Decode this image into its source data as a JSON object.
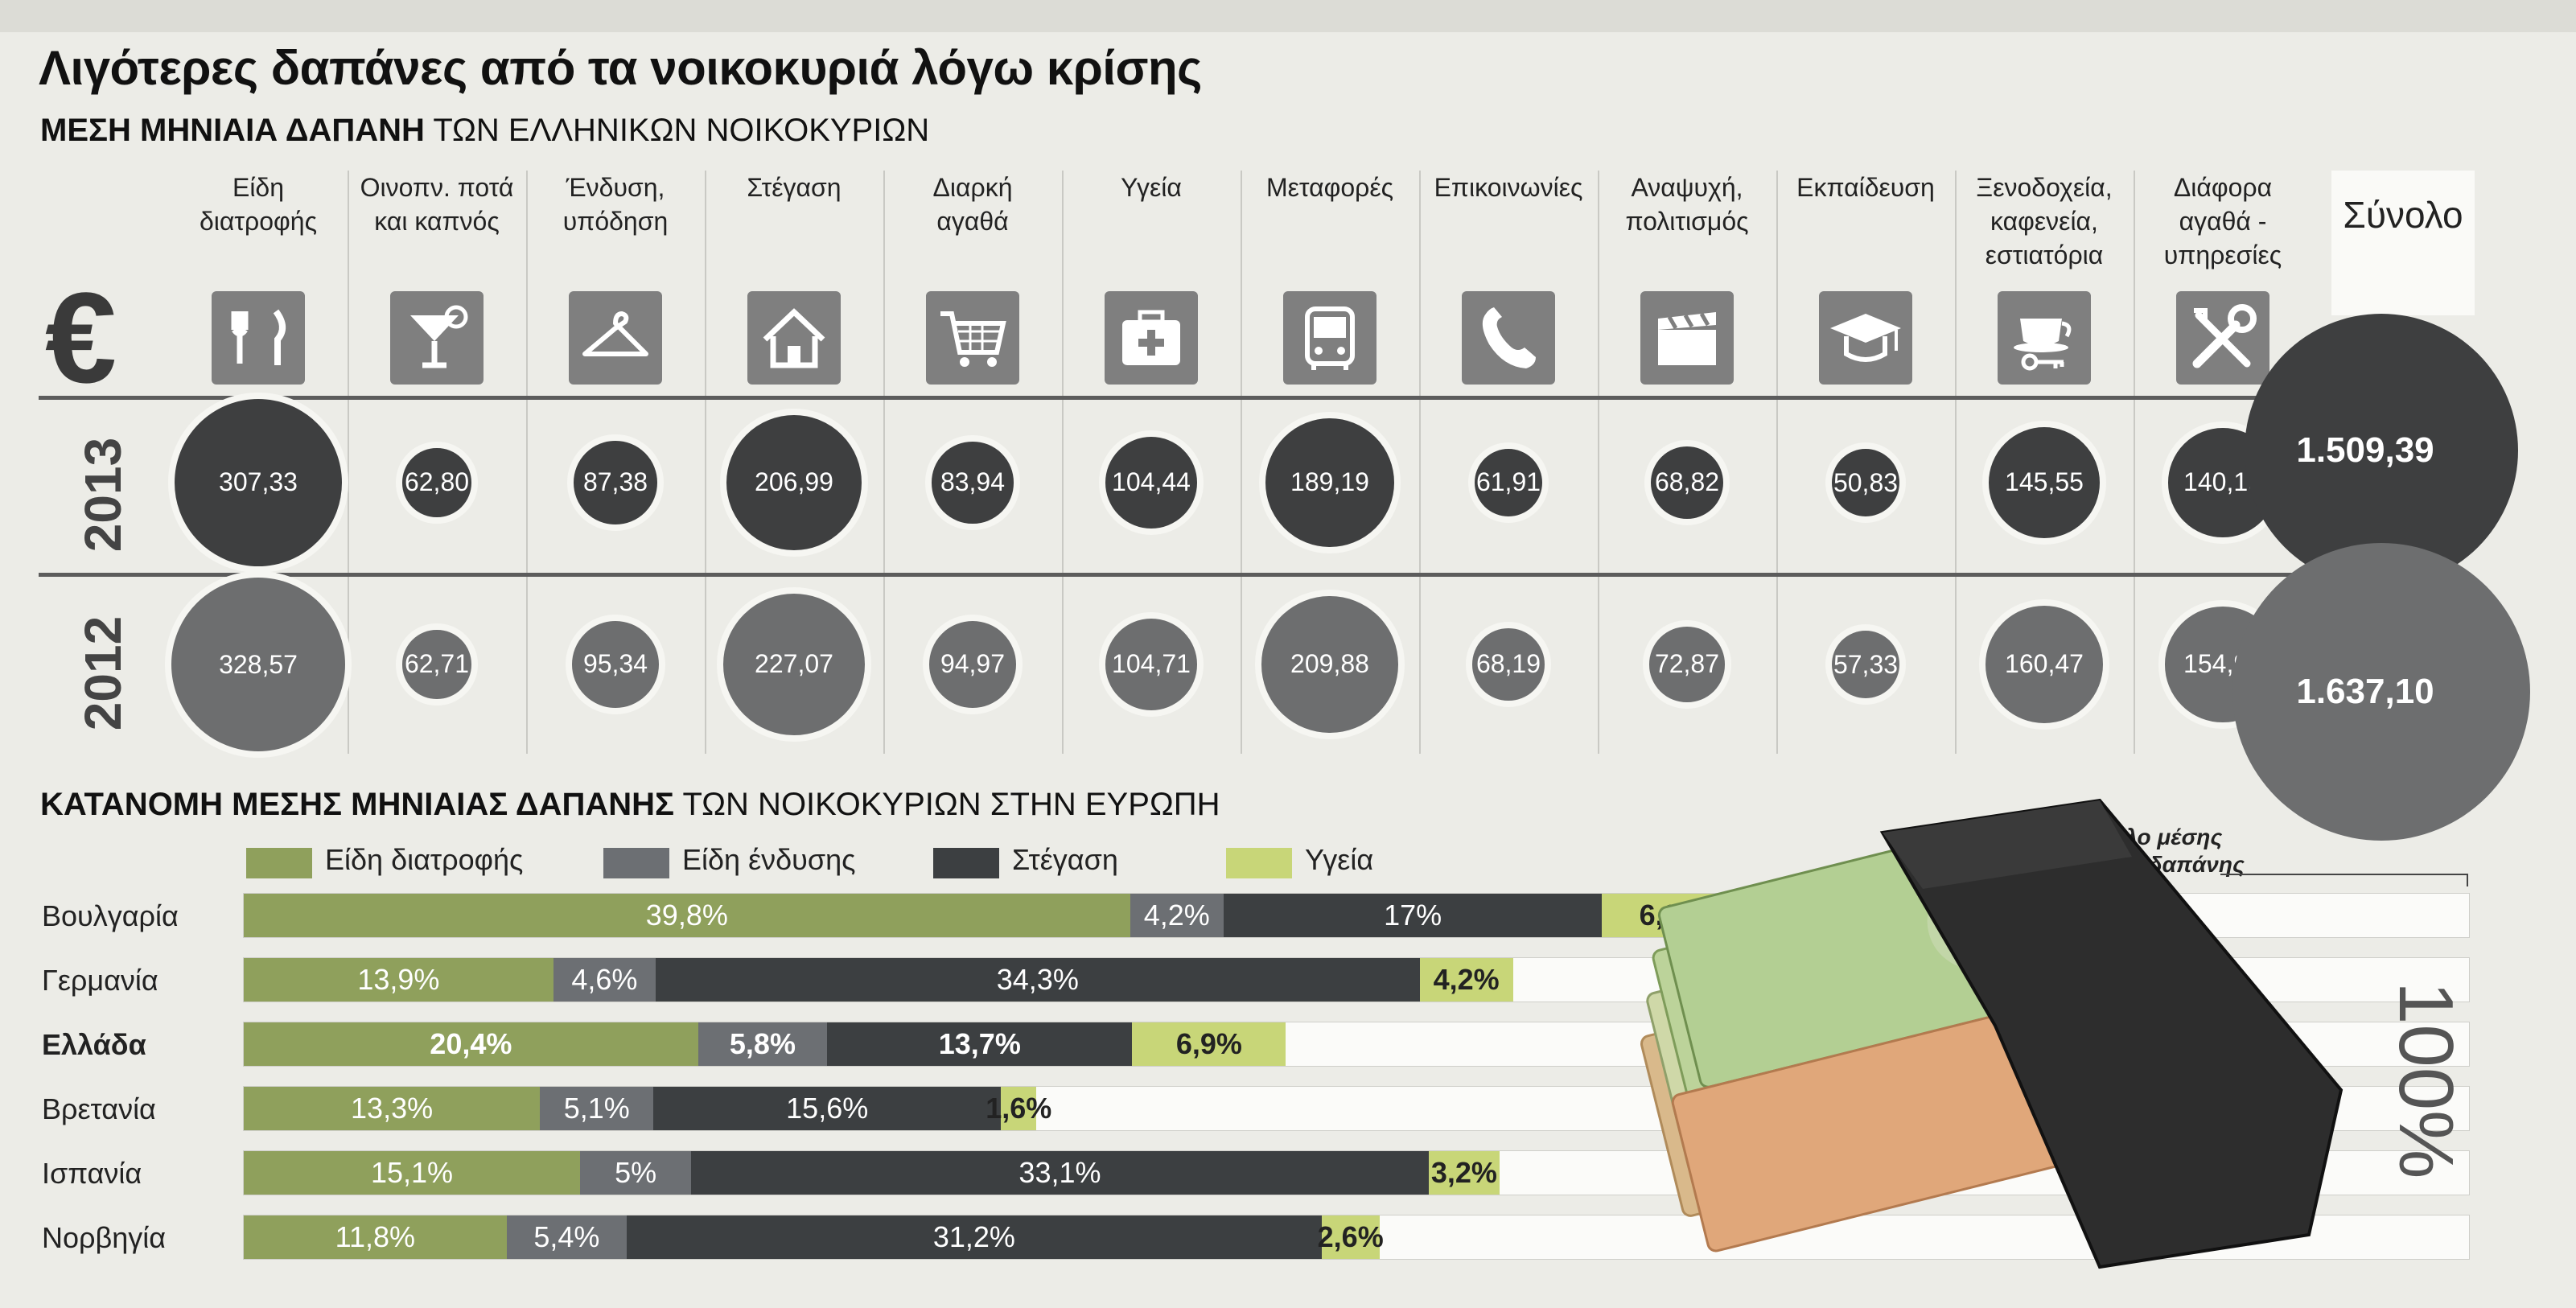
{
  "title": "Λιγότερες δαπάνες από τα νοικοκυριά λόγω κρίσης",
  "subtitle_bold": "ΜΕΣΗ ΜΗΝΙΑΙΑ ΔΑΠΑΝΗ",
  "subtitle_rest": " ΤΩΝ ΕΛΛΗΝΙΚΩΝ ΝΟΙΚΟΚΥΡΙΩΝ",
  "euro_symbol": "€",
  "years": [
    "2013",
    "2012"
  ],
  "total_label": "Σύνολο",
  "section2_bold": "ΚΑΤΑΝΟΜΗ ΜΕΣΗΣ ΜΗΝΙΑΙΑΣ ΔΑΠΑΝΗΣ",
  "section2_rest": " ΤΩΝ ΝΟΙΚΟΚΥΡΙΩΝ ΣΤΗΝ ΕΥΡΩΠΗ",
  "total_note_line1": "Σύνολο μέσης",
  "total_note_line2": "μηνιαίας δαπάνης",
  "pct_100": "100%",
  "colors": {
    "food": "#8fa05c",
    "clothing": "#6c6f73",
    "housing": "#3c3f41",
    "health": "#c8d678",
    "bubble2013": "#3e3f40",
    "bubble2012": "#6d6e6f"
  },
  "chart_data": [
    {
      "type": "bubble",
      "categories": [
        {
          "line1": "Είδη",
          "line2": "διατροφής",
          "icon": "food-icon"
        },
        {
          "line1": "Οινοπν. ποτά",
          "line2": "και καπνός",
          "icon": "cocktail-icon"
        },
        {
          "line1": "Ένδυση,",
          "line2": "υπόδηση",
          "icon": "hanger-icon"
        },
        {
          "line1": "Στέγαση",
          "line2": "",
          "icon": "house-icon"
        },
        {
          "line1": "Διαρκή",
          "line2": "αγαθά",
          "icon": "cart-icon"
        },
        {
          "line1": "Υγεία",
          "line2": "",
          "icon": "first-aid-icon"
        },
        {
          "line1": "Μεταφορές",
          "line2": "",
          "icon": "bus-icon"
        },
        {
          "line1": "Επικοινωνίες",
          "line2": "",
          "icon": "phone-icon"
        },
        {
          "line1": "Αναψυχή,",
          "line2": "πολιτισμός",
          "icon": "clapperboard-icon"
        },
        {
          "line1": "Εκπαίδευση",
          "line2": "",
          "icon": "graduation-cap-icon"
        },
        {
          "line1": "Ξενοδοχεία,",
          "line2": "καφενεία,",
          "line3": "εστιατόρια",
          "icon": "coffee-cup-icon"
        },
        {
          "line1": "Διάφορα",
          "line2": "αγαθά -",
          "line3": "υπηρεσίες",
          "icon": "tools-icon"
        }
      ],
      "series": [
        {
          "name": "2013",
          "values": [
            307.33,
            62.8,
            87.38,
            206.99,
            83.94,
            104.44,
            189.19,
            61.91,
            68.82,
            50.83,
            145.55,
            140.19
          ],
          "labels": [
            "307,33",
            "62,80",
            "87,38",
            "206,99",
            "83,94",
            "104,44",
            "189,19",
            "61,91",
            "68,82",
            "50,83",
            "145,55",
            "140,19"
          ],
          "total": 1509.39,
          "total_label": "1.509,39"
        },
        {
          "name": "2012",
          "values": [
            328.57,
            62.71,
            95.34,
            227.07,
            94.97,
            104.71,
            209.88,
            68.19,
            72.87,
            57.33,
            160.47,
            154.98
          ],
          "labels": [
            "328,57",
            "62,71",
            "95,34",
            "227,07",
            "94,97",
            "104,71",
            "209,88",
            "68,19",
            "72,87",
            "57,33",
            "160,47",
            "154,98"
          ],
          "total": 1637.1,
          "total_label": "1.637,10"
        }
      ]
    },
    {
      "type": "bar",
      "orientation": "horizontal",
      "stacked": true,
      "xlim": [
        0,
        100
      ],
      "legend": [
        "Είδη διατροφής",
        "Είδη ένδυσης",
        "Στέγαση",
        "Υγεία"
      ],
      "categories": [
        "Βουλγαρία",
        "Γερμανία",
        "Ελλάδα",
        "Βρετανία",
        "Ισπανία",
        "Νορβηγία"
      ],
      "highlight": "Ελλάδα",
      "series": [
        {
          "name": "Είδη διατροφής",
          "values": [
            39.8,
            13.9,
            20.4,
            13.3,
            15.1,
            11.8
          ],
          "labels": [
            "39,8%",
            "13,9%",
            "20,4%",
            "13,3%",
            "15,1%",
            "11,8%"
          ]
        },
        {
          "name": "Είδη ένδυσης",
          "values": [
            4.2,
            4.6,
            5.8,
            5.1,
            5.0,
            5.4
          ],
          "labels": [
            "4,2%",
            "4,6%",
            "5,8%",
            "5,1%",
            "5%",
            "5,4%"
          ]
        },
        {
          "name": "Στέγαση",
          "values": [
            17.0,
            34.3,
            13.7,
            15.6,
            33.1,
            31.2
          ],
          "labels": [
            "17%",
            "34,3%",
            "13,7%",
            "15,6%",
            "33,1%",
            "31,2%"
          ]
        },
        {
          "name": "Υγεία",
          "values": [
            6.3,
            4.2,
            6.9,
            1.6,
            3.2,
            2.6
          ],
          "labels": [
            "6,3%",
            "4,2%",
            "6,9%",
            "1,6%",
            "3,2%",
            "2,6%"
          ]
        }
      ]
    }
  ]
}
